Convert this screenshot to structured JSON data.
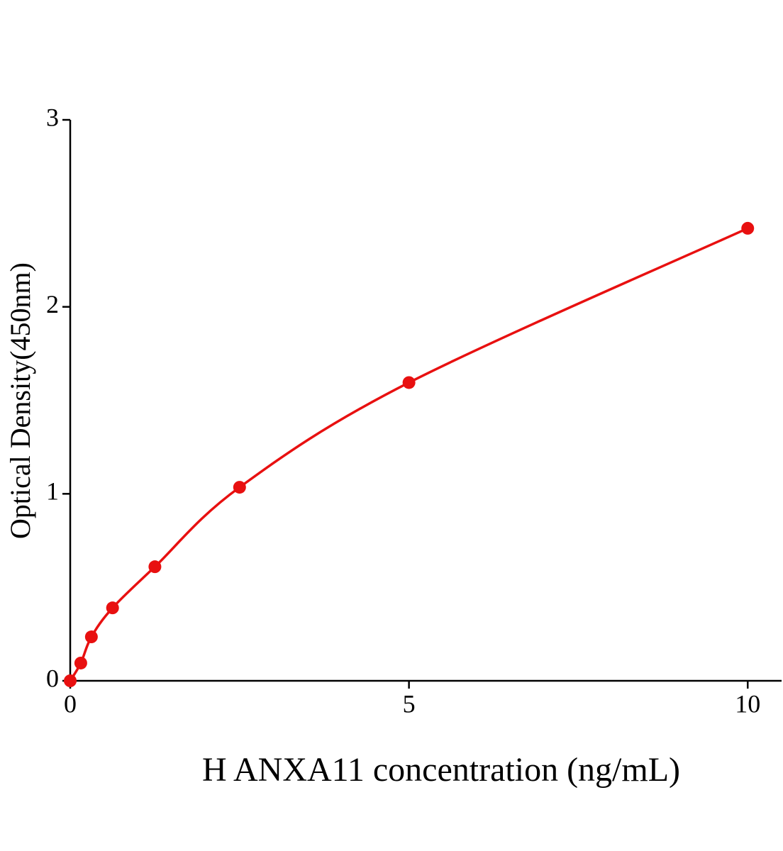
{
  "chart_data": {
    "type": "scatter",
    "x_label": "H ANXA11 concentration (ng/mL)",
    "y_label": "Optical Density(450nm)",
    "series": [
      {
        "color": "#e81010",
        "x": [
          0,
          0.156,
          0.3125,
          0.625,
          1.25,
          2.5,
          5,
          10
        ],
        "values": [
          0,
          0.095,
          0.235,
          0.39,
          0.61,
          1.035,
          1.595,
          2.42
        ]
      }
    ],
    "fit_line": true,
    "xlim": [
      0,
      10.5
    ],
    "xticks": [
      0,
      5,
      10
    ],
    "ylim": [
      0,
      3
    ],
    "yticks": [
      0,
      1,
      2,
      3
    ]
  }
}
